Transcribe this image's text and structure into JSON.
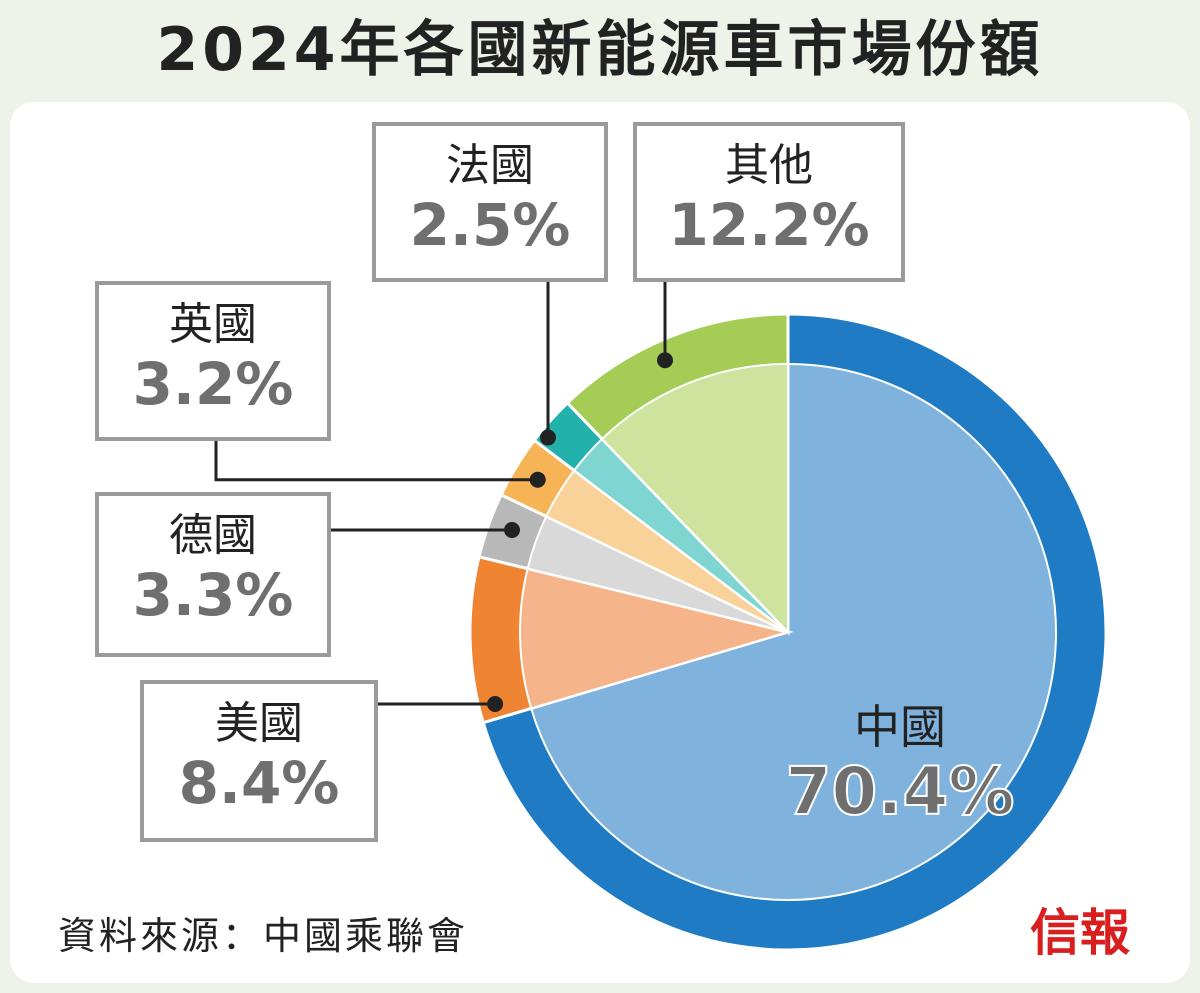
{
  "title": "2024年各國新能源車市場份額",
  "source": "資料來源：中國乘聯會",
  "brand": "信報",
  "chart_data": {
    "type": "pie",
    "title": "2024年各國新能源車市場份額",
    "unit": "%",
    "slices": [
      {
        "label": "中國",
        "value": 70.4,
        "display": "70.4%",
        "outer_color": "#1f7cc4",
        "inner_color": "#7fb2dc"
      },
      {
        "label": "美國",
        "value": 8.4,
        "display": "8.4%",
        "outer_color": "#ef8432",
        "inner_color": "#f6b48a"
      },
      {
        "label": "德國",
        "value": 3.3,
        "display": "3.3%",
        "outer_color": "#b8b8b8",
        "inner_color": "#d9d9d9"
      },
      {
        "label": "英國",
        "value": 3.2,
        "display": "3.2%",
        "outer_color": "#f6b457",
        "inner_color": "#f9d29a"
      },
      {
        "label": "法國",
        "value": 2.5,
        "display": "2.5%",
        "outer_color": "#22b1ab",
        "inner_color": "#7fd5d2"
      },
      {
        "label": "其他",
        "value": 12.2,
        "display": "12.2%",
        "outer_color": "#a5cd55",
        "inner_color": "#cde39e"
      }
    ]
  }
}
